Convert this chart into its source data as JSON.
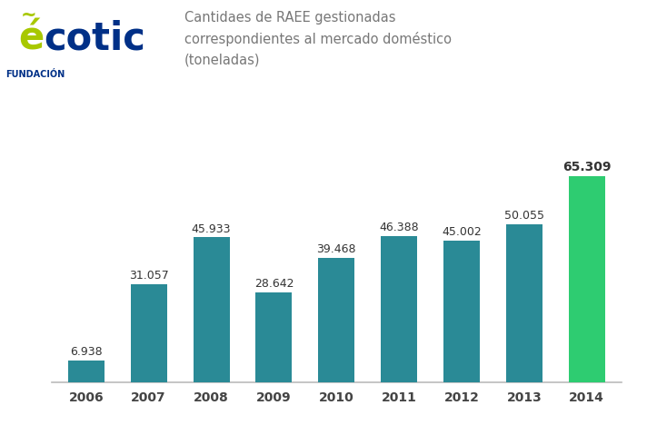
{
  "years": [
    "2006",
    "2007",
    "2008",
    "2009",
    "2010",
    "2011",
    "2012",
    "2013",
    "2014"
  ],
  "values": [
    6938,
    31057,
    45933,
    28642,
    39468,
    46388,
    45002,
    50055,
    65309
  ],
  "labels": [
    "6.938",
    "31.057",
    "45.933",
    "28.642",
    "39.468",
    "46.388",
    "45.002",
    "50.055",
    "65.309"
  ],
  "bar_colors": [
    "#2a8a96",
    "#2a8a96",
    "#2a8a96",
    "#2a8a96",
    "#2a8a96",
    "#2a8a96",
    "#2a8a96",
    "#2a8a96",
    "#2ecc71"
  ],
  "title_line1": "Cantidaes de RAEE gestionadas",
  "title_line2": "correspondientes al mercado doméstico",
  "title_line3": "(toneladas)",
  "title_color": "#777777",
  "title_fontsize": 10.5,
  "label_fontsize": 9.0,
  "tick_fontsize": 10.0,
  "background_color": "#ffffff",
  "ylim": [
    0,
    78000
  ],
  "logo_green": "#a8c800",
  "logo_blue": "#003087"
}
